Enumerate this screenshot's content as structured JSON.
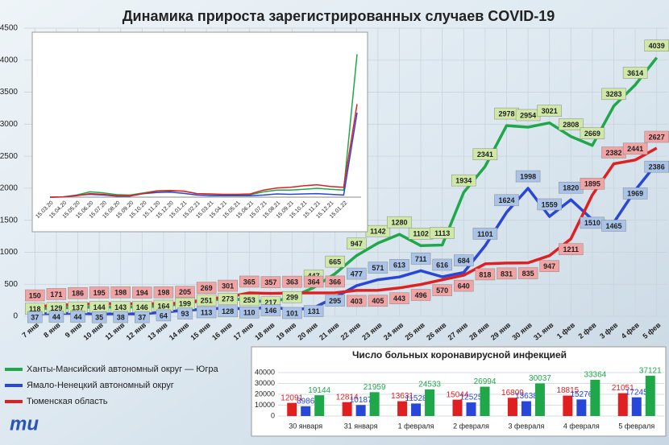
{
  "chart_data": [
    {
      "type": "line",
      "title": "Динамика прироста зарегистрированных случаев COVID-19",
      "categories": [
        "7 янв",
        "8 янв",
        "9 янв",
        "10 янв",
        "11 янв",
        "12 янв",
        "13 янв",
        "14 янв",
        "15 янв",
        "16 янв",
        "17 янв",
        "18 янв",
        "19 янв",
        "20 янв",
        "21 янв",
        "22 янв",
        "23 янв",
        "24 янв",
        "25 янв",
        "26 янв",
        "27 янв",
        "28 янв",
        "29 янв",
        "30 янв",
        "31 янв",
        "1 фев",
        "2 фев",
        "3 фев",
        "4 фев",
        "5 фев"
      ],
      "series": [
        {
          "name": "Ханты-Мансийский автономный округ — Югра",
          "color": "#1fa84a",
          "label_color": "#cfe8a6",
          "values": [
            118,
            129,
            137,
            144,
            143,
            146,
            164,
            199,
            251,
            273,
            253,
            217,
            299,
            447,
            665,
            947,
            1142,
            1280,
            1102,
            1113,
            1934,
            2341,
            2978,
            2954,
            3021,
            2808,
            2669,
            3283,
            3614,
            4039
          ]
        },
        {
          "name": "Ямало-Ненецкий автономный округ",
          "color": "#2846d8",
          "label_color": "#a9c4e8",
          "values": [
            37,
            44,
            44,
            35,
            38,
            37,
            64,
            93,
            113,
            128,
            110,
            146,
            101,
            131,
            295,
            477,
            571,
            613,
            711,
            616,
            684,
            1101,
            1624,
            1998,
            1559,
            1820,
            1510,
            1465,
            1969,
            2386
          ]
        },
        {
          "name": "Тюменская область",
          "color": "#e02020",
          "label_color": "#f2a3a3",
          "values": [
            150,
            171,
            186,
            195,
            198,
            194,
            198,
            205,
            269,
            301,
            365,
            357,
            363,
            364,
            366,
            403,
            405,
            443,
            496,
            570,
            640,
            818,
            831,
            835,
            947,
            1211,
            1895,
            2382,
            2441,
            2627
          ]
        }
      ],
      "ylim": [
        0,
        4500
      ],
      "yticks": [
        0,
        500,
        1000,
        1500,
        2000,
        2500,
        3000,
        3500,
        4000,
        4500
      ],
      "grid": true,
      "legend": "lower left"
    },
    {
      "type": "line",
      "categories": [
        "15.03.20",
        "15.04.20",
        "15.05.20",
        "15.06.20",
        "15.07.20",
        "15.08.20",
        "15.09.20",
        "15.10.20",
        "15.11.20",
        "15.12.20",
        "15.01.21",
        "15.02.21",
        "15.03.21",
        "15.04.21",
        "15.05.21",
        "15.06.21",
        "15.07.21",
        "15.08.21",
        "15.09.21",
        "15.10.21",
        "15.11.21",
        "15.12.21",
        "15.01.22",
        null
      ],
      "series": [
        {
          "color": "#1fa84a",
          "values": [
            0,
            10,
            60,
            150,
            120,
            70,
            60,
            120,
            180,
            190,
            170,
            100,
            80,
            70,
            70,
            70,
            150,
            200,
            200,
            220,
            250,
            220,
            200,
            4039
          ]
        },
        {
          "color": "#2846d8",
          "values": [
            0,
            5,
            50,
            80,
            60,
            30,
            30,
            100,
            130,
            140,
            110,
            60,
            40,
            40,
            40,
            40,
            60,
            90,
            80,
            90,
            100,
            80,
            60,
            2386
          ]
        },
        {
          "color": "#e02020",
          "values": [
            0,
            10,
            40,
            100,
            80,
            40,
            40,
            100,
            170,
            180,
            170,
            100,
            90,
            80,
            80,
            90,
            200,
            260,
            280,
            320,
            350,
            300,
            280,
            2627
          ]
        }
      ],
      "ylim": [
        0,
        4500
      ]
    },
    {
      "type": "bar",
      "title": "Число больных коронавирусной инфекцией",
      "categories": [
        "30 января",
        "31 января",
        "1 февраля",
        "2 февраля",
        "3 февраля",
        "4 февраля",
        "5 февраля"
      ],
      "series": [
        {
          "color": "#e02020",
          "values": [
            12091,
            12814,
            13631,
            15044,
            16809,
            18815,
            21051
          ]
        },
        {
          "color": "#2846d8",
          "values": [
            8986,
            10187,
            11528,
            12525,
            13638,
            15276,
            17245
          ]
        },
        {
          "color": "#1fa84a",
          "values": [
            19144,
            21959,
            24533,
            26994,
            30037,
            33364,
            37121
          ]
        }
      ],
      "ylim": [
        0,
        40000
      ],
      "yticks": [
        0,
        10000,
        20000,
        30000,
        40000
      ],
      "grid": true
    }
  ],
  "logo": "mu"
}
